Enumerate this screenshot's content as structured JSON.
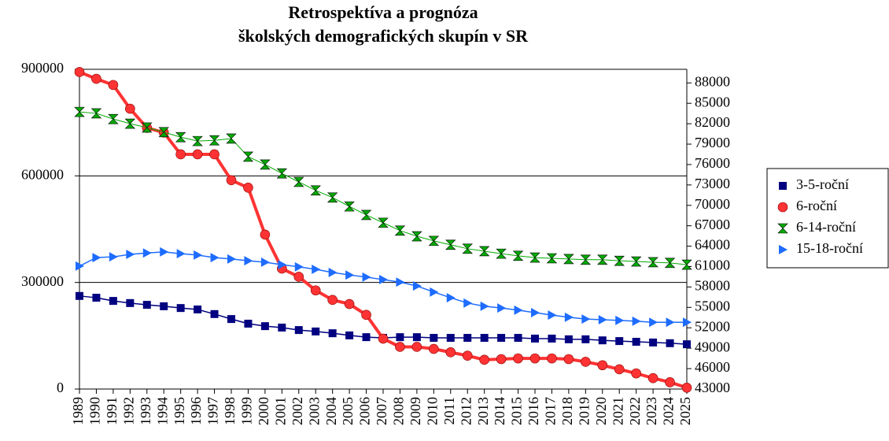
{
  "chart_data": {
    "type": "line",
    "title": [
      "Retrospektíva a prognóza",
      "školských demografických skupín v SR"
    ],
    "categories": [
      "1989",
      "1990",
      "1991",
      "1992",
      "1993",
      "1994",
      "1995",
      "1996",
      "1997",
      "1998",
      "1999",
      "2000",
      "2001",
      "2002",
      "2003",
      "2004",
      "2005",
      "2006",
      "2007",
      "2008",
      "2009",
      "2010",
      "2011",
      "2012",
      "2013",
      "2014",
      "2015",
      "2016",
      "2017",
      "2018",
      "2019",
      "2020",
      "2021",
      "2022",
      "2023",
      "2024",
      "2025"
    ],
    "ylim": [
      0,
      900000
    ],
    "yticks": [
      0,
      300000,
      600000,
      900000
    ],
    "y2lim": [
      43000,
      90000
    ],
    "y2ticks": [
      43000,
      46000,
      49000,
      52000,
      55000,
      58000,
      61000,
      64000,
      67000,
      70000,
      73000,
      76000,
      79000,
      82000,
      85000,
      88000
    ],
    "grid": true,
    "legend": "right",
    "series": [
      {
        "name": "3-5-roční",
        "color": "#000080",
        "marker": "square",
        "values": [
          262000,
          257000,
          248000,
          242000,
          237000,
          233000,
          228000,
          224000,
          211000,
          197000,
          184000,
          177000,
          173000,
          166000,
          162000,
          157000,
          151000,
          146000,
          144000,
          146000,
          146000,
          144000,
          144000,
          144000,
          144000,
          144000,
          144000,
          142000,
          142000,
          140000,
          140000,
          137000,
          135000,
          133000,
          131000,
          129000,
          126000
        ]
      },
      {
        "name": "6-roční",
        "color": "#ff3333",
        "marker": "circle",
        "axis": "y2",
        "values": [
          89600,
          88600,
          87700,
          84200,
          81400,
          80700,
          77500,
          77500,
          77500,
          73700,
          72600,
          65700,
          60700,
          59500,
          57500,
          56100,
          55500,
          53900,
          50400,
          49200,
          49200,
          48900,
          48400,
          47900,
          47300,
          47400,
          47500,
          47500,
          47500,
          47400,
          47000,
          46500,
          45900,
          45300,
          44600,
          44000,
          43200
        ]
      },
      {
        "name": "6-14-roční",
        "color": "#00aa00",
        "marker": "hourglass",
        "values": [
          780000,
          776000,
          760000,
          747000,
          736000,
          723000,
          709000,
          698000,
          700000,
          705000,
          654000,
          632000,
          607000,
          583000,
          559000,
          539000,
          514000,
          490000,
          468000,
          446000,
          430000,
          417000,
          406000,
          395000,
          388000,
          381000,
          375000,
          370000,
          368000,
          366000,
          364000,
          364000,
          361000,
          359000,
          357000,
          355000,
          350000
        ]
      },
      {
        "name": "15-18-roční",
        "color": "#1e6cff",
        "marker": "triangle",
        "values": [
          346000,
          370000,
          372000,
          379000,
          383000,
          386000,
          381000,
          377000,
          370000,
          366000,
          361000,
          357000,
          350000,
          344000,
          337000,
          328000,
          321000,
          315000,
          308000,
          301000,
          290000,
          273000,
          257000,
          242000,
          233000,
          228000,
          222000,
          215000,
          208000,
          202000,
          197000,
          195000,
          193000,
          191000,
          188000,
          188000,
          188000
        ]
      }
    ]
  }
}
